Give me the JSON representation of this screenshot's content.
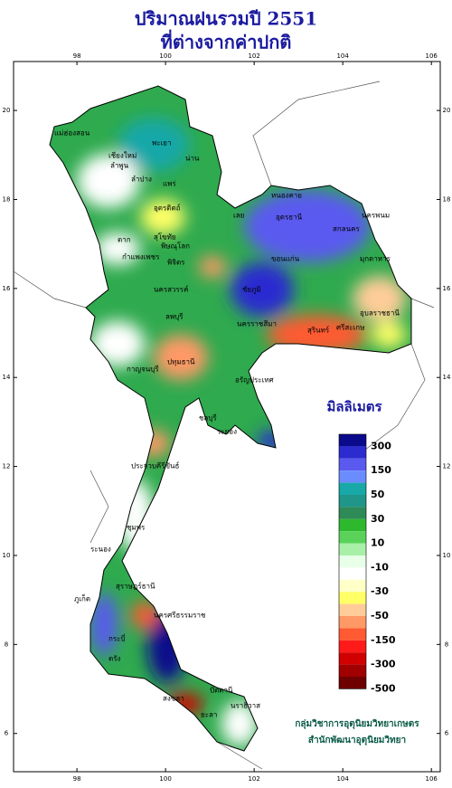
{
  "header": {
    "title": "ปริมาณฝนรวมปี 2551",
    "subtitle": "ที่ต่างจากค่าปกติ"
  },
  "map": {
    "lon_lim": [
      96.57,
      106.2
    ],
    "lat_lim": [
      5.14,
      21.1
    ],
    "lon_ticks": [
      98,
      100,
      102,
      104,
      106
    ],
    "lat_ticks": [
      20,
      18,
      16,
      14,
      12,
      10,
      8,
      6
    ],
    "land_color": "#2faa4e"
  },
  "legend": {
    "title": "มิลลิเมตร",
    "labels": [
      300,
      150,
      50,
      30,
      10,
      -10,
      -30,
      -50,
      -150,
      -300,
      -500
    ],
    "colors": [
      "#0a0a8c",
      "#2b2bd0",
      "#5a5af0",
      "#6a8cff",
      "#18a8a8",
      "#1f9688",
      "#2e8b57",
      "#2db82d",
      "#5ad25a",
      "#a8f0a8",
      "#e8ffe8",
      "#ffffff",
      "#ffffc8",
      "#ffff66",
      "#ffcc99",
      "#ff9966",
      "#ff5a32",
      "#ff1a1a",
      "#d00000",
      "#a00000",
      "#6e0000"
    ]
  },
  "provinces": [
    "แม่ฮ่องสอน",
    "เชียงใหม่",
    "ลำพูน",
    "ลำปาง",
    "พะเยา",
    "น่าน",
    "แพร่",
    "อุตรดิตถ์",
    "ตาก",
    "สุโขทัย",
    "พิษณุโลก",
    "กำแพงเพชร",
    "พิจิตร",
    "นครสวรรค์",
    "หนองคาย",
    "อุดรธานี",
    "สกลนคร",
    "นครพนม",
    "มุกดาหาร",
    "เลย",
    "ขอนแก่น",
    "ชัยภูมิ",
    "นครราชสีมา",
    "อุบลราชธานี",
    "ศรีสะเกษ",
    "สุรินทร์",
    "ลพบุรี",
    "กาญจนบุรี",
    "ปทุมธานี",
    "อรัญประเทศ",
    "ชลบุรี",
    "ระยอง",
    "ประจวบคีรีขันธ์",
    "ชุมพร",
    "ระนอง",
    "สุราษฎร์ธานี",
    "นครศรีธรรมราช",
    "ภูเก็ต",
    "กระบี่",
    "ตรัง",
    "สงขลา",
    "ปัตตานี",
    "นราธิวาส",
    "ยะลา"
  ],
  "credit": [
    "กลุ่มวิชาการอุตุนิยมวิทยาเกษตร",
    "สำนักพัฒนาอุตุนิยมวิทยา"
  ]
}
